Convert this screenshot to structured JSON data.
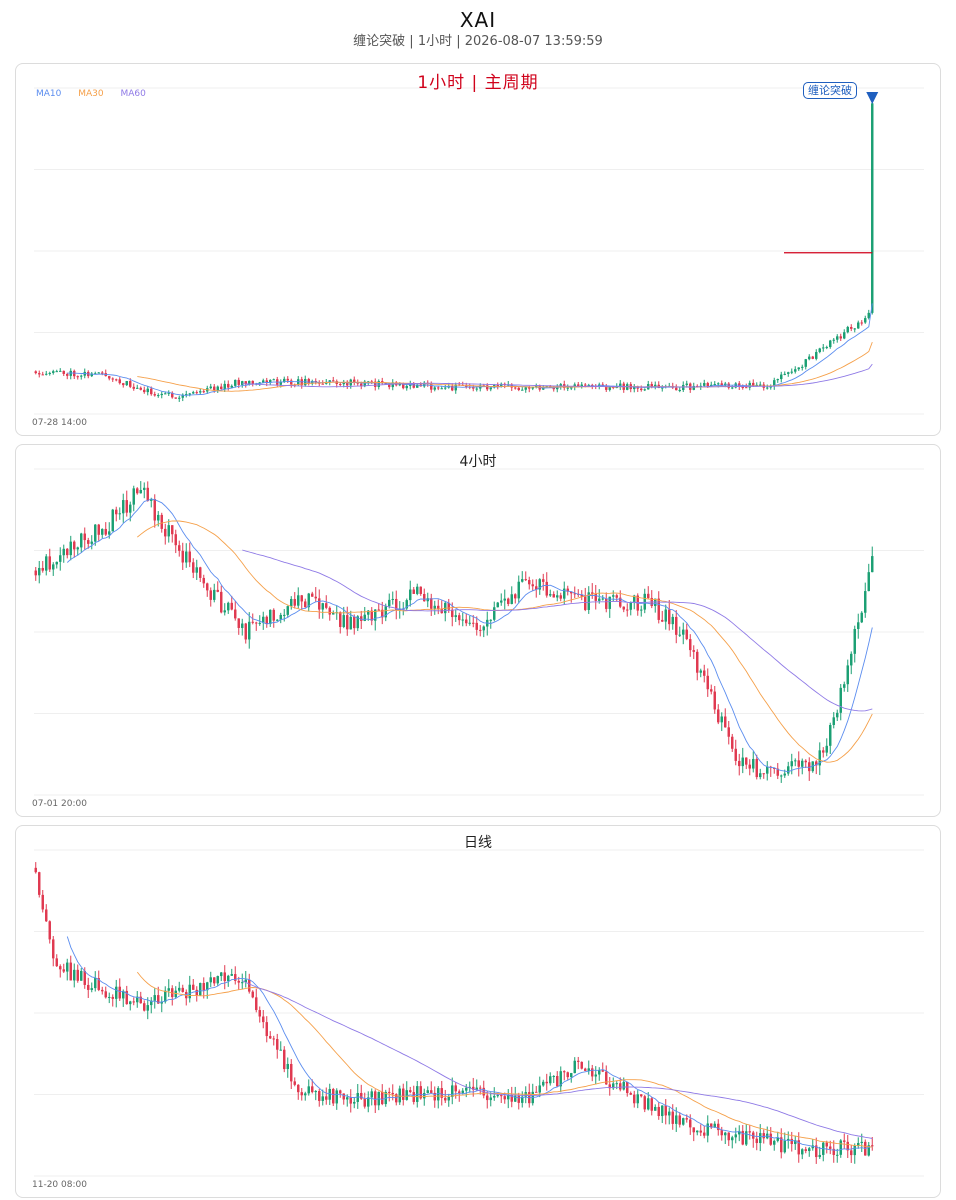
{
  "header": {
    "title": "XAI",
    "subtitle": "缠论突破 | 1小时 | 2026-08-07 13:59:59"
  },
  "colors": {
    "up": "#1a9f73",
    "down": "#e0384f",
    "ma10": "#5b8def",
    "ma30": "#f5a04a",
    "ma60": "#8f7ae6",
    "accent_red": "#d0021b",
    "signal_blue": "#1f5fbf"
  },
  "panels": [
    {
      "id": "h1",
      "title": "1小时 | 主周期",
      "legend": [
        "MA10",
        "MA30",
        "MA60"
      ],
      "start_label": "07-28 14:00",
      "signal_label": "缠论突破"
    },
    {
      "id": "h4",
      "title": "4小时",
      "start_label": "07-01 20:00"
    },
    {
      "id": "d1",
      "title": "日线",
      "start_label": "11-20 08:00"
    }
  ],
  "chart_data": [
    {
      "type": "candlestick",
      "title": "1小时 | 主周期",
      "x_start": "07-28 14:00",
      "bars": 240,
      "series": [
        {
          "name": "MA10"
        },
        {
          "name": "MA30"
        },
        {
          "name": "MA60"
        }
      ],
      "price_path": [
        [
          0,
          60
        ],
        [
          20,
          58
        ],
        [
          30,
          48
        ],
        [
          40,
          45
        ],
        [
          60,
          54
        ],
        [
          90,
          53
        ],
        [
          120,
          50
        ],
        [
          150,
          51
        ],
        [
          180,
          50
        ],
        [
          210,
          52
        ],
        [
          220,
          66
        ],
        [
          235,
          90
        ],
        [
          238,
          96
        ],
        [
          239,
          220
        ]
      ],
      "breakout_level": 133,
      "signal": "缠论突破",
      "grid": true,
      "legend_position": "top-left"
    },
    {
      "type": "candlestick",
      "title": "4小时",
      "x_start": "07-01 20:00",
      "bars": 240,
      "price_path": [
        [
          0,
          62
        ],
        [
          20,
          72
        ],
        [
          30,
          80
        ],
        [
          45,
          62
        ],
        [
          60,
          48
        ],
        [
          75,
          56
        ],
        [
          90,
          50
        ],
        [
          110,
          57
        ],
        [
          125,
          49
        ],
        [
          140,
          60
        ],
        [
          155,
          55
        ],
        [
          175,
          55
        ],
        [
          185,
          48
        ],
        [
          200,
          20
        ],
        [
          210,
          16
        ],
        [
          225,
          20
        ],
        [
          235,
          50
        ],
        [
          239,
          65
        ]
      ],
      "grid": true
    },
    {
      "type": "candlestick",
      "title": "日线",
      "x_start": "11-20 08:00",
      "bars": 240,
      "price_path": [
        [
          0,
          78
        ],
        [
          5,
          55
        ],
        [
          15,
          50
        ],
        [
          30,
          45
        ],
        [
          50,
          50
        ],
        [
          60,
          52
        ],
        [
          65,
          40
        ],
        [
          75,
          24
        ],
        [
          95,
          22
        ],
        [
          120,
          24
        ],
        [
          140,
          22
        ],
        [
          155,
          30
        ],
        [
          165,
          26
        ],
        [
          180,
          18
        ],
        [
          195,
          14
        ],
        [
          220,
          10
        ],
        [
          239,
          10
        ]
      ],
      "grid": true
    }
  ]
}
